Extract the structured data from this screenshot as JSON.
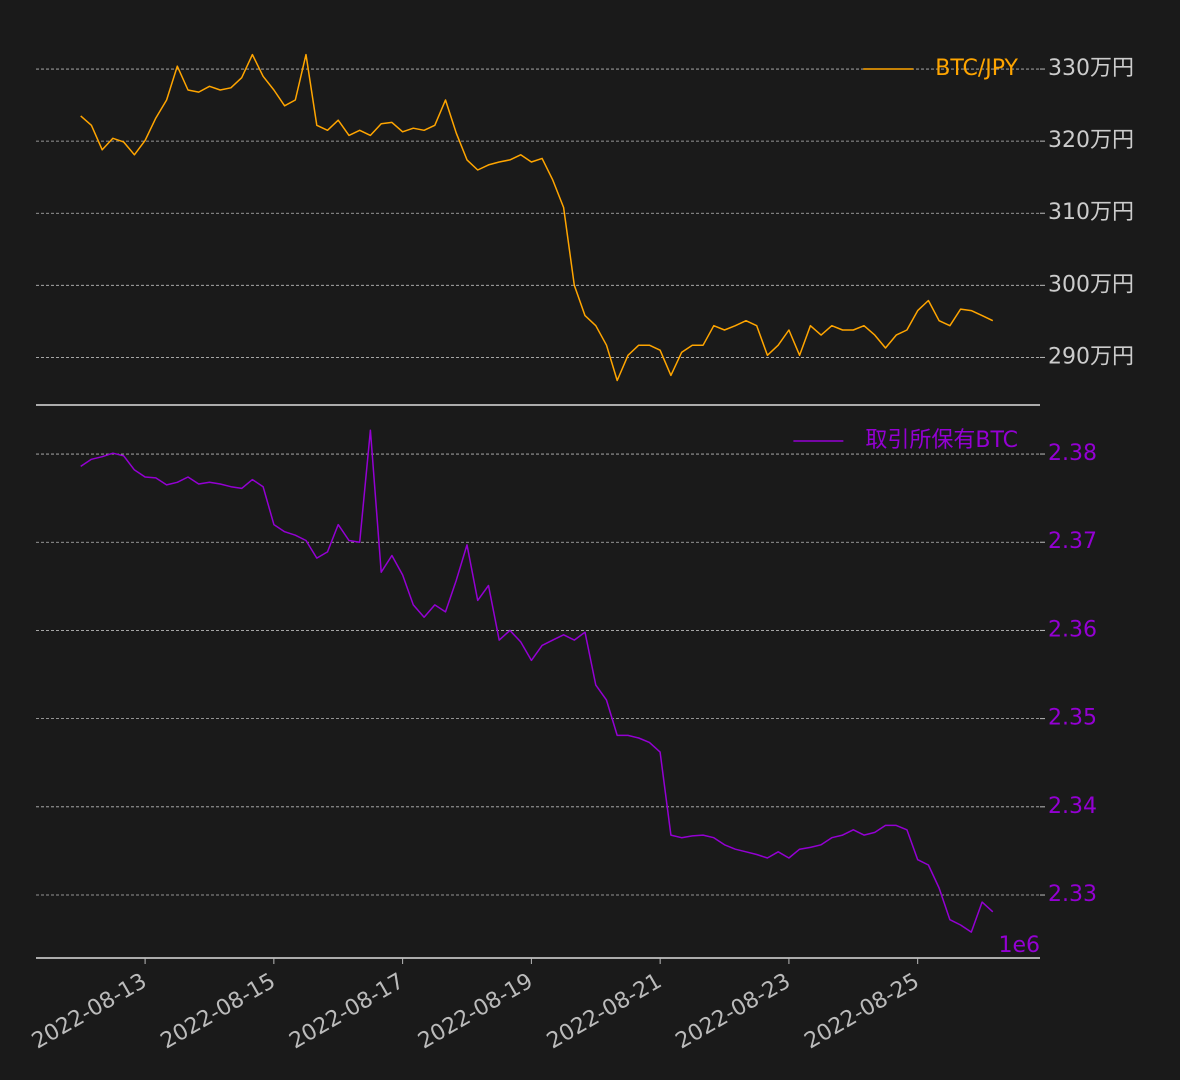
{
  "chart_data": [
    {
      "type": "line",
      "grid": true,
      "legend": "upper right",
      "tick_color": "#cccccc",
      "xlim": [
        "2022-08-11 07:20",
        "2022-08-26 21:36"
      ],
      "ylim": [
        2834000,
        3350000
      ],
      "yticks": [
        {
          "value": 2900000,
          "label": "290万円"
        },
        {
          "value": 3000000,
          "label": "300万円"
        },
        {
          "value": 3100000,
          "label": "310万円"
        },
        {
          "value": 3200000,
          "label": "320万円"
        },
        {
          "value": 3300000,
          "label": "330万円"
        }
      ],
      "x": [
        "2022-08-12 00:00",
        "2022-08-12 04:00",
        "2022-08-12 08:00",
        "2022-08-12 12:00",
        "2022-08-12 16:00",
        "2022-08-12 20:00",
        "2022-08-13 00:00",
        "2022-08-13 04:00",
        "2022-08-13 08:00",
        "2022-08-13 12:00",
        "2022-08-13 16:00",
        "2022-08-13 20:00",
        "2022-08-14 00:00",
        "2022-08-14 04:00",
        "2022-08-14 08:00",
        "2022-08-14 12:00",
        "2022-08-14 16:00",
        "2022-08-14 20:00",
        "2022-08-15 00:00",
        "2022-08-15 04:00",
        "2022-08-15 08:00",
        "2022-08-15 12:00",
        "2022-08-15 16:00",
        "2022-08-15 20:00",
        "2022-08-16 00:00",
        "2022-08-16 04:00",
        "2022-08-16 08:00",
        "2022-08-16 12:00",
        "2022-08-16 16:00",
        "2022-08-16 20:00",
        "2022-08-17 00:00",
        "2022-08-17 04:00",
        "2022-08-17 08:00",
        "2022-08-17 12:00",
        "2022-08-17 16:00",
        "2022-08-17 20:00",
        "2022-08-18 00:00",
        "2022-08-18 04:00",
        "2022-08-18 08:00",
        "2022-08-18 12:00",
        "2022-08-18 16:00",
        "2022-08-18 20:00",
        "2022-08-19 00:00",
        "2022-08-19 04:00",
        "2022-08-19 08:00",
        "2022-08-19 12:00",
        "2022-08-19 16:00",
        "2022-08-19 20:00",
        "2022-08-20 00:00",
        "2022-08-20 04:00",
        "2022-08-20 08:00",
        "2022-08-20 12:00",
        "2022-08-20 16:00",
        "2022-08-20 20:00",
        "2022-08-21 00:00",
        "2022-08-21 04:00",
        "2022-08-21 08:00",
        "2022-08-21 12:00",
        "2022-08-21 16:00",
        "2022-08-21 20:00",
        "2022-08-22 00:00",
        "2022-08-22 04:00",
        "2022-08-22 08:00",
        "2022-08-22 12:00",
        "2022-08-22 16:00",
        "2022-08-22 20:00",
        "2022-08-23 00:00",
        "2022-08-23 04:00",
        "2022-08-23 08:00",
        "2022-08-23 12:00",
        "2022-08-23 16:00",
        "2022-08-23 20:00",
        "2022-08-24 00:00",
        "2022-08-24 04:00",
        "2022-08-24 08:00",
        "2022-08-24 12:00",
        "2022-08-24 16:00",
        "2022-08-24 20:00",
        "2022-08-25 00:00",
        "2022-08-25 04:00",
        "2022-08-25 08:00",
        "2022-08-25 12:00",
        "2022-08-25 16:00",
        "2022-08-25 20:00",
        "2022-08-26 00:00",
        "2022-08-26 04:00"
      ],
      "series": [
        {
          "name": "BTC/JPY",
          "color": "#ffa500",
          "values": [
            3235000,
            3222000,
            3188000,
            3204000,
            3199000,
            3181000,
            3201000,
            3232000,
            3257000,
            3304000,
            3271000,
            3268000,
            3276000,
            3271000,
            3274000,
            3288000,
            3320000,
            3290000,
            3271000,
            3249000,
            3257000,
            3320000,
            3222000,
            3215000,
            3229000,
            3208000,
            3215000,
            3208000,
            3224000,
            3226000,
            3213000,
            3218000,
            3215000,
            3222000,
            3257000,
            3211000,
            3174000,
            3160000,
            3167000,
            3171000,
            3174000,
            3181000,
            3171000,
            3176000,
            3146000,
            3108000,
            3000000,
            2958000,
            2944000,
            2917000,
            2868000,
            2903000,
            2917000,
            2917000,
            2910000,
            2875000,
            2907000,
            2917000,
            2917000,
            2944000,
            2938000,
            2944000,
            2951000,
            2944000,
            2903000,
            2917000,
            2938000,
            2903000,
            2944000,
            2931000,
            2944000,
            2938000,
            2938000,
            2944000,
            2931000,
            2913000,
            2931000,
            2938000,
            2965000,
            2979000,
            2951000,
            2944000,
            2967000,
            2965000,
            2958000,
            2951000
          ]
        }
      ]
    },
    {
      "type": "line",
      "grid": true,
      "legend": "upper right",
      "tick_color": "#9400d3",
      "y_offset_label": "1e6",
      "xlim": [
        "2022-08-11 07:20",
        "2022-08-26 21:36"
      ],
      "xticks": [
        "2022-08-13",
        "2022-08-15",
        "2022-08-17",
        "2022-08-19",
        "2022-08-21",
        "2022-08-23",
        "2022-08-25"
      ],
      "ylim": [
        2322860,
        2385560
      ],
      "yticks": [
        {
          "value": 2330000,
          "label": "2.33"
        },
        {
          "value": 2340000,
          "label": "2.34"
        },
        {
          "value": 2350000,
          "label": "2.35"
        },
        {
          "value": 2360000,
          "label": "2.36"
        },
        {
          "value": 2370000,
          "label": "2.37"
        },
        {
          "value": 2380000,
          "label": "2.38"
        }
      ],
      "x": [
        "2022-08-12 00:00",
        "2022-08-12 04:00",
        "2022-08-12 08:00",
        "2022-08-12 12:00",
        "2022-08-12 16:00",
        "2022-08-12 20:00",
        "2022-08-13 00:00",
        "2022-08-13 04:00",
        "2022-08-13 08:00",
        "2022-08-13 12:00",
        "2022-08-13 16:00",
        "2022-08-13 20:00",
        "2022-08-14 00:00",
        "2022-08-14 04:00",
        "2022-08-14 08:00",
        "2022-08-14 12:00",
        "2022-08-14 16:00",
        "2022-08-14 20:00",
        "2022-08-15 00:00",
        "2022-08-15 04:00",
        "2022-08-15 08:00",
        "2022-08-15 12:00",
        "2022-08-15 16:00",
        "2022-08-15 20:00",
        "2022-08-16 00:00",
        "2022-08-16 04:00",
        "2022-08-16 08:00",
        "2022-08-16 12:00",
        "2022-08-16 16:00",
        "2022-08-16 20:00",
        "2022-08-17 00:00",
        "2022-08-17 04:00",
        "2022-08-17 08:00",
        "2022-08-17 12:00",
        "2022-08-17 16:00",
        "2022-08-17 20:00",
        "2022-08-18 00:00",
        "2022-08-18 04:00",
        "2022-08-18 08:00",
        "2022-08-18 12:00",
        "2022-08-18 16:00",
        "2022-08-18 20:00",
        "2022-08-19 00:00",
        "2022-08-19 04:00",
        "2022-08-19 08:00",
        "2022-08-19 12:00",
        "2022-08-19 16:00",
        "2022-08-19 20:00",
        "2022-08-20 00:00",
        "2022-08-20 04:00",
        "2022-08-20 08:00",
        "2022-08-20 12:00",
        "2022-08-20 16:00",
        "2022-08-20 20:00",
        "2022-08-21 00:00",
        "2022-08-21 04:00",
        "2022-08-21 08:00",
        "2022-08-21 12:00",
        "2022-08-21 16:00",
        "2022-08-21 20:00",
        "2022-08-22 00:00",
        "2022-08-22 04:00",
        "2022-08-22 08:00",
        "2022-08-22 12:00",
        "2022-08-22 16:00",
        "2022-08-22 20:00",
        "2022-08-23 00:00",
        "2022-08-23 04:00",
        "2022-08-23 08:00",
        "2022-08-23 12:00",
        "2022-08-23 16:00",
        "2022-08-23 20:00",
        "2022-08-24 00:00",
        "2022-08-24 04:00",
        "2022-08-24 08:00",
        "2022-08-24 12:00",
        "2022-08-24 16:00",
        "2022-08-24 20:00",
        "2022-08-25 00:00",
        "2022-08-25 04:00",
        "2022-08-25 08:00",
        "2022-08-25 12:00",
        "2022-08-25 16:00",
        "2022-08-25 20:00",
        "2022-08-26 00:00",
        "2022-08-26 04:00"
      ],
      "series": [
        {
          "name": "取引所保有BTC",
          "color": "#9400d3",
          "values": [
            2378600,
            2379400,
            2379700,
            2380100,
            2379800,
            2378200,
            2377400,
            2377300,
            2376500,
            2376800,
            2377400,
            2376600,
            2376800,
            2376600,
            2376300,
            2376100,
            2377100,
            2376300,
            2372000,
            2371200,
            2370800,
            2370200,
            2368200,
            2368900,
            2372000,
            2370200,
            2370000,
            2382700,
            2366600,
            2368500,
            2366300,
            2362900,
            2361500,
            2362900,
            2362100,
            2365700,
            2369700,
            2363400,
            2365100,
            2358900,
            2360000,
            2358700,
            2356600,
            2358300,
            2358900,
            2359500,
            2358900,
            2359800,
            2353800,
            2352100,
            2348100,
            2348100,
            2347800,
            2347300,
            2346200,
            2336800,
            2336500,
            2336700,
            2336800,
            2336500,
            2335700,
            2335200,
            2334900,
            2334600,
            2334200,
            2334900,
            2334200,
            2335200,
            2335400,
            2335700,
            2336500,
            2336800,
            2337400,
            2336800,
            2337100,
            2337900,
            2337900,
            2337400,
            2334000,
            2333400,
            2330800,
            2327200,
            2326600,
            2325800,
            2329200,
            2328100
          ]
        }
      ]
    }
  ]
}
